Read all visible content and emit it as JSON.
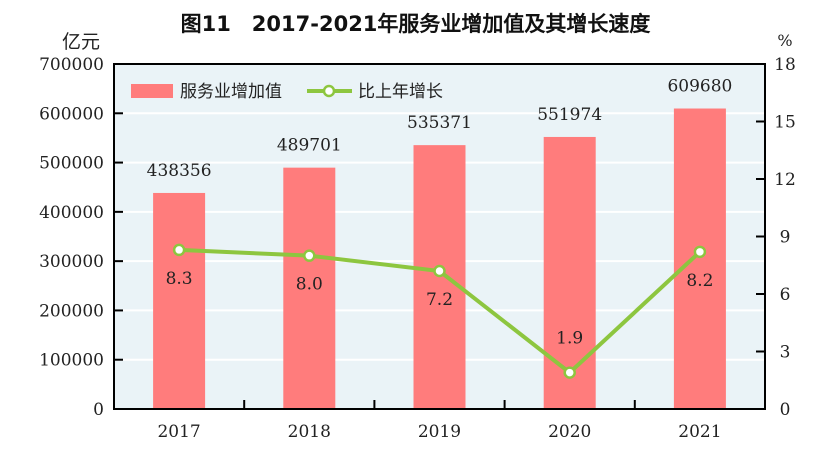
{
  "chart_data": {
    "type": "bar+line",
    "title": "图11　2017-2021年服务业增加值及其增长速度",
    "categories": [
      "2017",
      "2018",
      "2019",
      "2020",
      "2021"
    ],
    "left_axis": {
      "unit": "亿元",
      "ylim": [
        0,
        700000
      ],
      "ticks": [
        0,
        100000,
        200000,
        300000,
        400000,
        500000,
        600000,
        700000
      ]
    },
    "right_axis": {
      "unit": "%",
      "ylim": [
        0,
        18
      ],
      "ticks": [
        0,
        3,
        6,
        9,
        12,
        15,
        18
      ]
    },
    "grid": true,
    "legend": "top-left",
    "series": [
      {
        "name": "服务业增加值",
        "type": "bar",
        "axis": "left",
        "color": "#ff7c7c",
        "values": [
          438356,
          489701,
          535371,
          551974,
          609680
        ],
        "labels": [
          "438356",
          "489701",
          "535371",
          "551974",
          "609680"
        ]
      },
      {
        "name": "比上年增长",
        "type": "line",
        "axis": "right",
        "color": "#8dc63f",
        "values": [
          8.3,
          8.0,
          7.2,
          1.9,
          8.2
        ],
        "labels": [
          "8.3",
          "8.0",
          "7.2",
          "1.9",
          "8.2"
        ]
      }
    ],
    "background": "#eaf3f7"
  }
}
